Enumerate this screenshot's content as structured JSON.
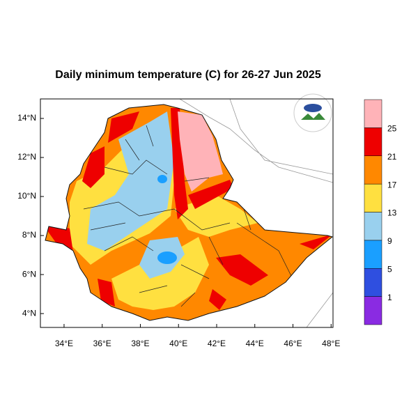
{
  "chart_data": {
    "type": "map",
    "title": "Daily minimum temperature (C) for 26-27 Jun 2025",
    "xlim": [
      32.76,
      48.1
    ],
    "ylim": [
      3.29,
      15.0
    ],
    "xticks": [
      {
        "value": 34,
        "label": "34°E"
      },
      {
        "value": 36,
        "label": "36°E"
      },
      {
        "value": 38,
        "label": "38°E"
      },
      {
        "value": 40,
        "label": "40°E"
      },
      {
        "value": 42,
        "label": "42°E"
      },
      {
        "value": 44,
        "label": "44°E"
      },
      {
        "value": 46,
        "label": "46°E"
      },
      {
        "value": 48,
        "label": "48°E"
      }
    ],
    "yticks": [
      {
        "value": 4,
        "label": "4°N"
      },
      {
        "value": 6,
        "label": "6°N"
      },
      {
        "value": 8,
        "label": "8°N"
      },
      {
        "value": 10,
        "label": "10°N"
      },
      {
        "value": 12,
        "label": "12°N"
      },
      {
        "value": 14,
        "label": "14°N"
      }
    ],
    "colorbar": {
      "levels": [
        1,
        5,
        9,
        13,
        17,
        21,
        25
      ],
      "colors": [
        "#8a2be2",
        "#2f4fe0",
        "#1a9fff",
        "#99d0ee",
        "#ffe040",
        "#ff8800",
        "#ee0000",
        "#ffb3b8"
      ]
    }
  }
}
